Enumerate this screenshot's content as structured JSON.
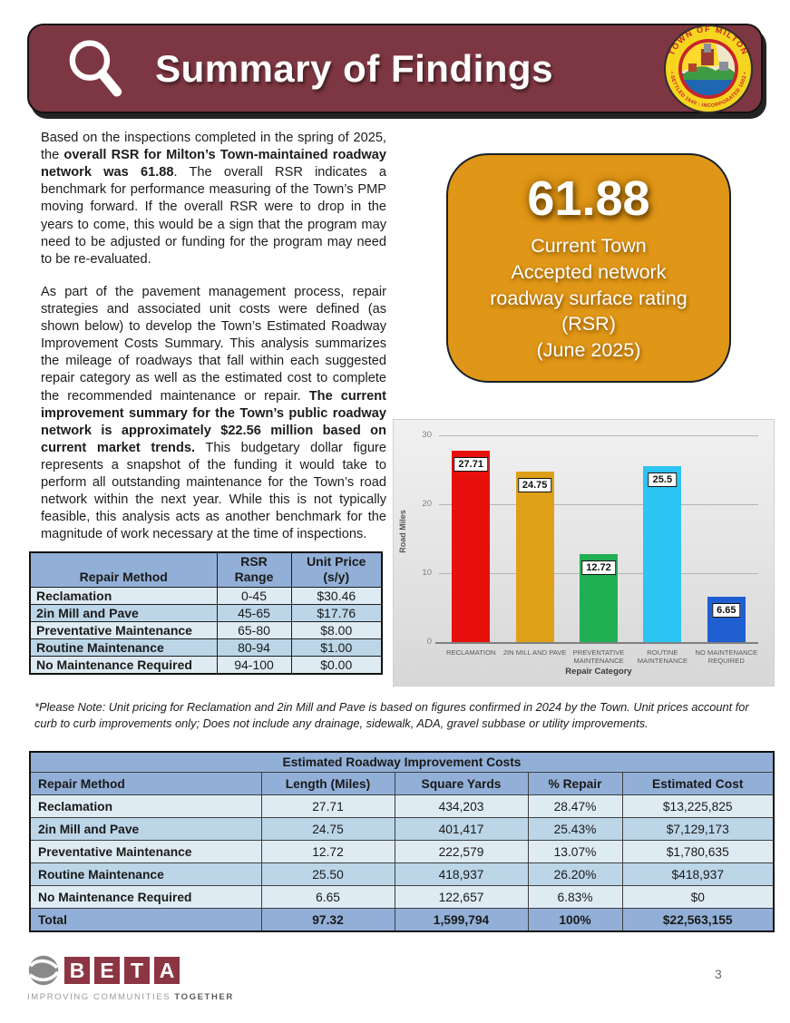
{
  "colors": {
    "banner_maroon": "#7D3742",
    "accent_orange": "#E09616",
    "table_header_blue": "#92AFD7",
    "row_light_blue": "#DEEBF3",
    "row_medium_blue": "#BCD6E8"
  },
  "header": {
    "title": "Summary of Findings",
    "seal": {
      "top_text": "TOWN OF MILTON",
      "bottom_text": "• SETTLED 1640 : INCORPORATED 1662 •"
    }
  },
  "intro": {
    "p1": [
      {
        "t": "Based on the inspections completed in the spring of 2025, the ",
        "b": false
      },
      {
        "t": "overall RSR for Milton’s Town-maintained roadway network was 61.88",
        "b": true
      },
      {
        "t": ". The overall RSR indicates a benchmark for performance measuring of the Town’s PMP moving forward. If the overall RSR were to drop in the years to come, this would be a sign that the program may need to be adjusted or funding for the program may need to be re-evaluated.",
        "b": false
      }
    ],
    "p2": [
      {
        "t": "As part of the pavement management process, repair strategies and associated unit costs were defined (as shown below) to develop the Town’s Estimated Roadway Improvement Costs Summary. This analysis summarizes the mileage of roadways that fall within each suggested repair category as well as the estimated cost to complete the recommended maintenance or repair. ",
        "b": false
      },
      {
        "t": "The current improvement summary for the Town’s public roadway network is approximately $22.56 million based on current market trends.",
        "b": true
      },
      {
        "t": " This budgetary dollar figure represents a snapshot of the funding it would take to perform all outstanding maintenance for the Town’s road network within the next year. While this is not typically feasible, this analysis acts as another benchmark for the magnitude of work necessary at the time of inspections.",
        "b": false
      }
    ]
  },
  "rsr_box": {
    "value": "61.88",
    "lines": [
      "Current Town",
      "Accepted network",
      "roadway surface rating",
      "(RSR)",
      "(June 2025)"
    ]
  },
  "chart_data": {
    "type": "bar",
    "categories": [
      "RECLAMATION",
      "2IN MILL AND PAVE",
      "PREVENTATIVE MAINTENANCE",
      "ROUTINE MAINTENANCE",
      "NO MAINTENANCE REQUIRED"
    ],
    "values": [
      27.71,
      24.75,
      12.72,
      25.5,
      6.65
    ],
    "value_labels": [
      "27.71",
      "24.75",
      "12.72",
      "25.5",
      "6.65"
    ],
    "bar_colors": [
      "#E8100C",
      "#DFA019",
      "#21AF54",
      "#2BC4F3",
      "#1F5FD1"
    ],
    "title": "",
    "xlabel": "Repair Category",
    "ylabel": "Road Miles",
    "ylim": [
      0,
      30
    ],
    "yticks": [
      0,
      10,
      20,
      30
    ],
    "grid": true,
    "legend": false
  },
  "unit_price_table": {
    "headers": [
      "Repair Method",
      "RSR Range",
      "Unit Price (s/y)"
    ],
    "rows": [
      [
        "Reclamation",
        "0-45",
        "$30.46"
      ],
      [
        "2in Mill and Pave",
        "45-65",
        "$17.76"
      ],
      [
        "Preventative Maintenance",
        "65-80",
        "$8.00"
      ],
      [
        "Routine Maintenance",
        "80-94",
        "$1.00"
      ],
      [
        "No Maintenance Required",
        "94-100",
        "$0.00"
      ]
    ]
  },
  "note": "*Please Note:  Unit pricing for Reclamation and 2in Mill and Pave is based on figures confirmed in 2024 by the Town. Unit prices account for curb to curb improvements only; Does not include any drainage, sidewalk, ADA, gravel subbase or utility improvements.",
  "costs_table": {
    "title": "Estimated Roadway Improvement Costs",
    "headers": [
      "Repair Method",
      "Length (Miles)",
      "Square Yards",
      "% Repair",
      "Estimated Cost"
    ],
    "rows": [
      [
        "Reclamation",
        "27.71",
        "434,203",
        "28.47%",
        "$13,225,825"
      ],
      [
        "2in Mill and Pave",
        "24.75",
        "401,417",
        "25.43%",
        "$7,129,173"
      ],
      [
        "Preventative Maintenance",
        "12.72",
        "222,579",
        "13.07%",
        "$1,780,635"
      ],
      [
        "Routine Maintenance",
        "25.50",
        "418,937",
        "26.20%",
        "$418,937"
      ],
      [
        "No Maintenance Required",
        "6.65",
        "122,657",
        "6.83%",
        "$0"
      ]
    ],
    "total": [
      "Total",
      "97.32",
      "1,599,794",
      "100%",
      "$22,563,155"
    ]
  },
  "footer": {
    "beta_letters": [
      "B",
      "E",
      "T",
      "A"
    ],
    "tagline_normal": "IMPROVING COMMUNITIES ",
    "tagline_bold": "TOGETHER",
    "page_number": "3"
  }
}
